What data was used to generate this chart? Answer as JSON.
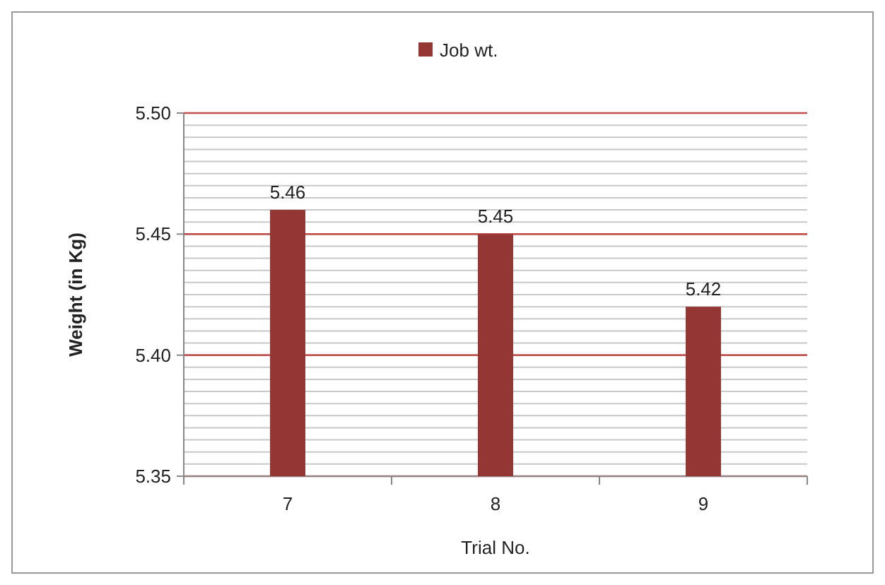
{
  "chart_data": {
    "type": "bar",
    "xlabel": "Trial No.",
    "ylabel": "Weight (in Kg)",
    "categories": [
      "7",
      "8",
      "9"
    ],
    "series": [
      {
        "name": "Job wt.",
        "color": "#943634",
        "values": [
          5.46,
          5.45,
          5.42
        ]
      }
    ],
    "ylim": [
      5.35,
      5.5
    ],
    "yticks": [
      {
        "value": 5.35,
        "label": "5.35"
      },
      {
        "value": 5.4,
        "label": "5.40"
      },
      {
        "value": 5.45,
        "label": "5.45"
      },
      {
        "value": 5.5,
        "label": "5.50"
      }
    ],
    "grid": "y",
    "legend": "top",
    "data_labels": true
  }
}
